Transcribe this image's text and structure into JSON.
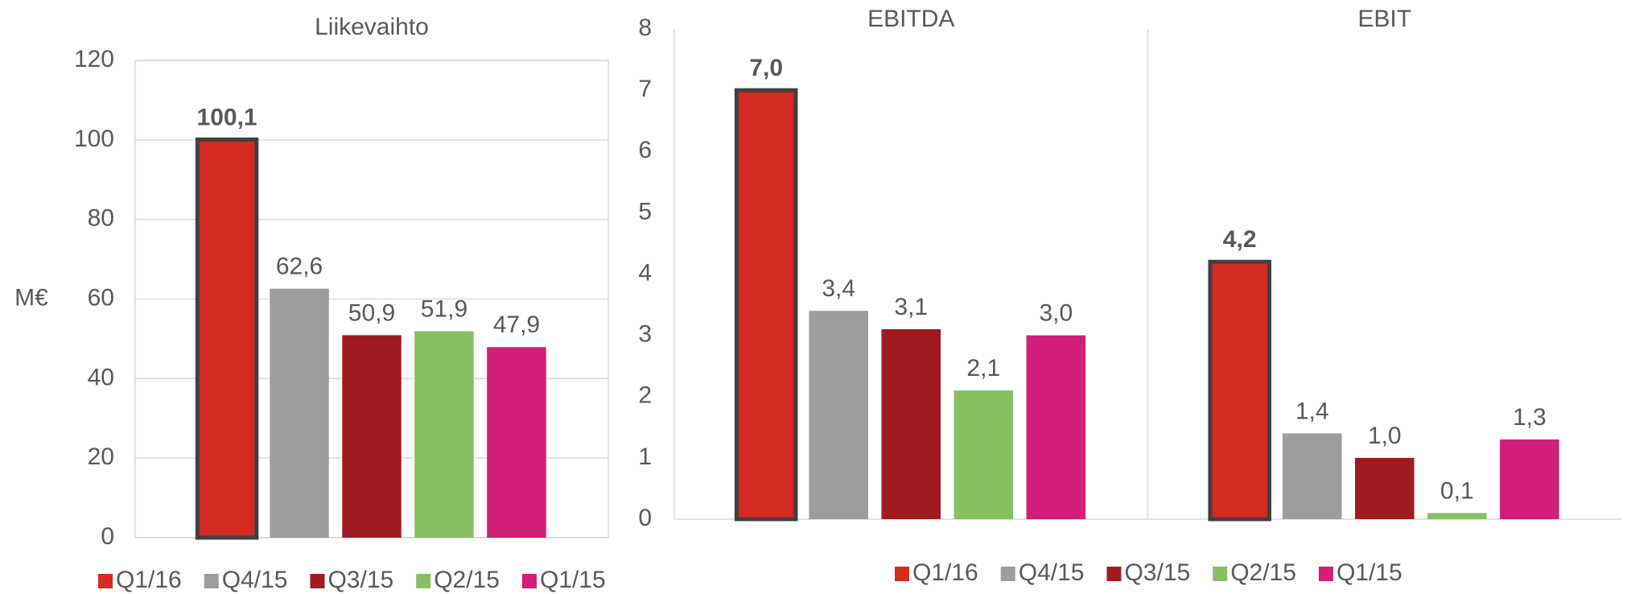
{
  "chart_data": [
    {
      "type": "bar",
      "categories": [
        "Liikevaihto"
      ],
      "ylabel": "M€",
      "ylim": [
        0,
        120
      ],
      "yticks": [
        0,
        20,
        40,
        60,
        80,
        100,
        120
      ],
      "grid": true,
      "series": [
        {
          "name": "Q1/16",
          "color": "#d42a20",
          "outline": "#404040",
          "values": [
            100.1
          ],
          "value_labels": [
            "100,1"
          ]
        },
        {
          "name": "Q4/15",
          "color": "#9d9d9b",
          "values": [
            62.6
          ],
          "value_labels": [
            "62,6"
          ]
        },
        {
          "name": "Q3/15",
          "color": "#a01b20",
          "values": [
            50.9
          ],
          "value_labels": [
            "50,9"
          ]
        },
        {
          "name": "Q2/15",
          "color": "#86c060",
          "values": [
            51.9
          ],
          "value_labels": [
            "51,9"
          ]
        },
        {
          "name": "Q1/15",
          "color": "#d11f7a",
          "values": [
            47.9
          ],
          "value_labels": [
            "47,9"
          ]
        }
      ]
    },
    {
      "type": "bar",
      "categories": [
        "EBITDA",
        "EBIT"
      ],
      "ylim": [
        0,
        8
      ],
      "yticks": [
        0,
        1,
        2,
        3,
        4,
        5,
        6,
        7,
        8
      ],
      "grid": false,
      "series": [
        {
          "name": "Q1/16",
          "color": "#d42a20",
          "outline": "#404040",
          "values": [
            7.0,
            4.2
          ],
          "value_labels": [
            "7,0",
            "4,2"
          ]
        },
        {
          "name": "Q4/15",
          "color": "#9d9d9b",
          "values": [
            3.4,
            1.4
          ],
          "value_labels": [
            "3,4",
            "1,4"
          ]
        },
        {
          "name": "Q3/15",
          "color": "#a01b20",
          "values": [
            3.1,
            1.0
          ],
          "value_labels": [
            "3,1",
            "1,0"
          ]
        },
        {
          "name": "Q2/15",
          "color": "#86c060",
          "values": [
            2.1,
            0.1
          ],
          "value_labels": [
            "2,1",
            "0,1"
          ]
        },
        {
          "name": "Q1/15",
          "color": "#d11f7a",
          "values": [
            3.0,
            1.3
          ],
          "value_labels": [
            "3,0",
            "1,3"
          ]
        }
      ]
    }
  ]
}
